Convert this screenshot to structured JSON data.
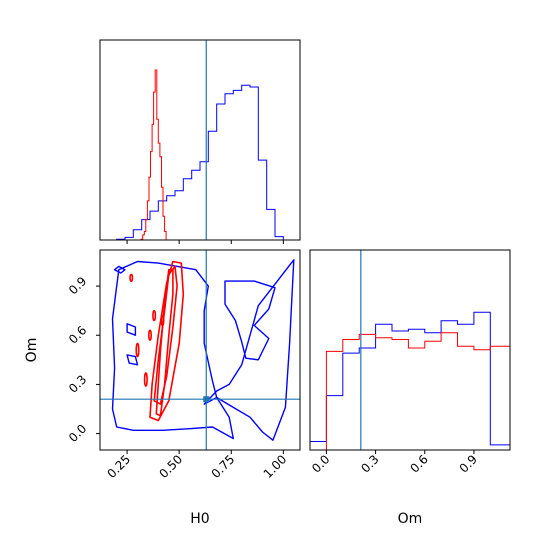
{
  "chart_data": {
    "type": "corner",
    "parameters": [
      "H0",
      "Om"
    ],
    "truths": {
      "H0": 0.63,
      "Om": 0.21
    },
    "colors": {
      "truth": "#1f77b4",
      "run_a": "#0000ff",
      "run_b": "#ff0000"
    },
    "series_colors": [
      "blue",
      "red"
    ],
    "axes": {
      "H0": {
        "label": "H0",
        "range": [
          0.12,
          1.08
        ],
        "ticks": [
          0.25,
          0.5,
          0.75,
          1.0
        ],
        "tick_labels": [
          "0.25",
          "0.50",
          "0.75",
          "1.00"
        ]
      },
      "Om": {
        "label": "Om",
        "range": [
          -0.1,
          1.12
        ],
        "ticks": [
          0.0,
          0.3,
          0.6,
          0.9
        ],
        "tick_labels": [
          "0.0",
          "0.3",
          "0.6",
          "0.9"
        ]
      }
    },
    "hist_H0": {
      "bin_edges": [
        0.12,
        0.16,
        0.2,
        0.24,
        0.28,
        0.32,
        0.36,
        0.4,
        0.44,
        0.48,
        0.52,
        0.56,
        0.6,
        0.64,
        0.68,
        0.72,
        0.76,
        0.8,
        0.84,
        0.88,
        0.92,
        0.96,
        1.0,
        1.04,
        1.08
      ],
      "blue": [
        0.0,
        0.0,
        0.005,
        0.015,
        0.06,
        0.12,
        0.17,
        0.23,
        0.26,
        0.29,
        0.36,
        0.41,
        0.46,
        0.64,
        0.8,
        0.86,
        0.88,
        0.91,
        0.9,
        0.47,
        0.18,
        0.02,
        0.0,
        0.0
      ],
      "blue_bin_width": 0.04,
      "red": [
        0.0,
        0.0,
        0.0,
        0.0,
        0.0,
        0.005,
        0.03,
        0.05,
        0.12,
        0.23,
        0.37,
        0.52,
        0.68,
        0.87,
        1.0,
        0.71,
        0.57,
        0.49,
        0.31,
        0.14,
        0.05,
        0.0,
        0.0,
        0.0
      ],
      "red_range": [
        0.28,
        0.46
      ]
    },
    "hist_Om": {
      "bin_edges": [
        -0.1,
        0.0,
        0.1,
        0.2,
        0.3,
        0.4,
        0.5,
        0.6,
        0.7,
        0.8,
        0.9,
        1.0,
        1.12
      ],
      "blue": [
        0.05,
        0.32,
        0.57,
        0.6,
        0.74,
        0.7,
        0.71,
        0.69,
        0.76,
        0.74,
        0.81,
        0.03
      ],
      "red": [
        0.58,
        0.65,
        0.68,
        0.66,
        0.65,
        0.6,
        0.64,
        0.69,
        0.61,
        0.59,
        0.61
      ]
    },
    "contours": {
      "blue": [
        [
          [
            0.2,
            0.04
          ],
          [
            0.28,
            0.02
          ],
          [
            0.42,
            0.02
          ],
          [
            0.55,
            0.03
          ],
          [
            0.66,
            0.04
          ],
          [
            0.76,
            -0.03
          ],
          [
            0.74,
            0.1
          ],
          [
            0.68,
            0.22
          ],
          [
            0.66,
            0.32
          ],
          [
            0.62,
            0.55
          ],
          [
            0.62,
            0.75
          ],
          [
            0.64,
            0.9
          ],
          [
            0.58,
            1.0
          ],
          [
            0.4,
            1.04
          ],
          [
            0.3,
            1.05
          ],
          [
            0.21,
            1.0
          ],
          [
            0.18,
            0.7
          ],
          [
            0.19,
            0.4
          ],
          [
            0.18,
            0.15
          ],
          [
            0.2,
            0.04
          ]
        ],
        [
          [
            0.62,
            0.18
          ],
          [
            0.68,
            0.22
          ],
          [
            0.76,
            0.16
          ],
          [
            0.84,
            0.1
          ],
          [
            0.9,
            0.01
          ],
          [
            0.95,
            -0.04
          ],
          [
            1.01,
            0.16
          ],
          [
            1.03,
            0.55
          ],
          [
            1.05,
            1.06
          ],
          [
            0.88,
            0.78
          ],
          [
            0.8,
            0.42
          ],
          [
            0.74,
            0.3
          ],
          [
            0.68,
            0.26
          ],
          [
            0.62,
            0.18
          ]
        ],
        [
          [
            0.72,
            0.93
          ],
          [
            0.86,
            0.93
          ],
          [
            0.96,
            0.89
          ],
          [
            0.93,
            0.76
          ],
          [
            0.86,
            0.66
          ],
          [
            0.93,
            0.58
          ],
          [
            0.88,
            0.45
          ],
          [
            0.82,
            0.46
          ],
          [
            0.8,
            0.56
          ],
          [
            0.77,
            0.69
          ],
          [
            0.72,
            0.79
          ],
          [
            0.72,
            0.93
          ]
        ],
        [
          [
            0.19,
            1.0
          ],
          [
            0.22,
            0.98
          ],
          [
            0.24,
            1.0
          ],
          [
            0.21,
            1.02
          ],
          [
            0.19,
            1.0
          ]
        ],
        [
          [
            0.25,
            0.67
          ],
          [
            0.29,
            0.65
          ],
          [
            0.29,
            0.6
          ],
          [
            0.25,
            0.62
          ],
          [
            0.25,
            0.67
          ]
        ],
        [
          [
            0.25,
            0.48
          ],
          [
            0.29,
            0.47
          ],
          [
            0.3,
            0.42
          ],
          [
            0.26,
            0.43
          ],
          [
            0.25,
            0.48
          ]
        ]
      ],
      "red": [
        [
          [
            0.36,
            0.1
          ],
          [
            0.4,
            0.08
          ],
          [
            0.45,
            0.2
          ],
          [
            0.5,
            0.55
          ],
          [
            0.52,
            0.85
          ],
          [
            0.51,
            1.04
          ],
          [
            0.47,
            1.05
          ],
          [
            0.44,
            0.92
          ],
          [
            0.4,
            0.6
          ],
          [
            0.37,
            0.3
          ],
          [
            0.36,
            0.1
          ]
        ],
        [
          [
            0.38,
            0.2
          ],
          [
            0.41,
            0.18
          ],
          [
            0.44,
            0.35
          ],
          [
            0.47,
            0.65
          ],
          [
            0.49,
            0.9
          ],
          [
            0.48,
            1.02
          ],
          [
            0.45,
            0.97
          ],
          [
            0.43,
            0.75
          ],
          [
            0.4,
            0.45
          ],
          [
            0.38,
            0.2
          ]
        ],
        [
          [
            0.39,
            0.12
          ],
          [
            0.41,
            0.11
          ],
          [
            0.43,
            0.3
          ],
          [
            0.45,
            0.6
          ],
          [
            0.47,
            0.85
          ],
          [
            0.47,
            1.0
          ],
          [
            0.45,
            1.0
          ],
          [
            0.43,
            0.8
          ],
          [
            0.41,
            0.5
          ],
          [
            0.39,
            0.12
          ]
        ]
      ],
      "red_blobs": [
        [
          0.3,
          0.51,
          0.006,
          0.04
        ],
        [
          0.34,
          0.33,
          0.006,
          0.04
        ],
        [
          0.38,
          0.72,
          0.005,
          0.03
        ],
        [
          0.36,
          0.6,
          0.005,
          0.03
        ],
        [
          0.42,
          0.69,
          0.005,
          0.03
        ],
        [
          0.27,
          0.95,
          0.005,
          0.02
        ]
      ]
    }
  }
}
